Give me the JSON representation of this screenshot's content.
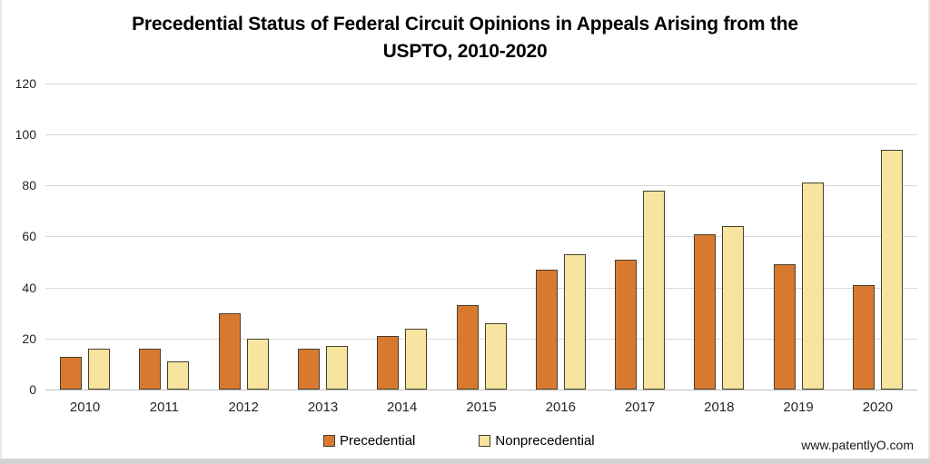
{
  "title": {
    "line1": "Precedential Status of Federal Circuit Opinions in Appeals Arising from the",
    "line2": "USPTO, 2010-2020"
  },
  "footer": {
    "watermark": "www.patentlyO.com"
  },
  "colors": {
    "precedential": "#d9792f",
    "nonprecedential": "#f7e49e",
    "bar_border": "#45402f",
    "gridline": "#d9d9d9",
    "axis_line": "#c0c0c0"
  },
  "chart_data": {
    "type": "bar",
    "title": "Precedential Status of Federal Circuit Opinions in Appeals Arising from the USPTO, 2010-2020",
    "categories": [
      "2010",
      "2011",
      "2012",
      "2013",
      "2014",
      "2015",
      "2016",
      "2017",
      "2018",
      "2019",
      "2020"
    ],
    "series": [
      {
        "name": "Precedential",
        "color": "#d9792f",
        "values": [
          13,
          16,
          30,
          16,
          21,
          33,
          47,
          51,
          61,
          49,
          41
        ]
      },
      {
        "name": "Nonprecedential",
        "color": "#f7e49e",
        "values": [
          16,
          11,
          20,
          17,
          24,
          26,
          53,
          78,
          64,
          81,
          94
        ]
      }
    ],
    "xlabel": "",
    "ylabel": "",
    "ylim": [
      0,
      120
    ],
    "yticks": [
      0,
      20,
      40,
      60,
      80,
      100,
      120
    ],
    "grid": true,
    "legend_position": "bottom"
  }
}
